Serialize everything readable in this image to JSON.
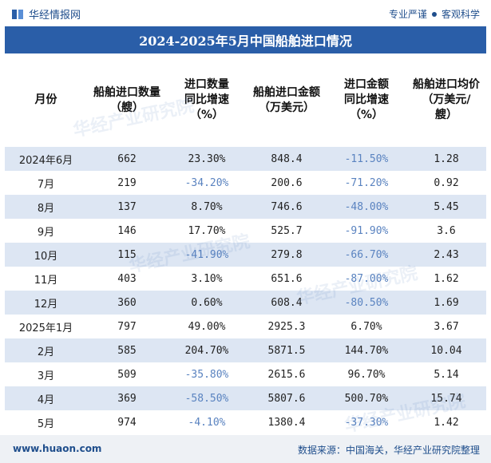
{
  "brand": {
    "name": "华经情报网"
  },
  "tagline": {
    "left": "专业严谨",
    "right": "客观科学"
  },
  "title": "2024-2025年5月中国船舶进口情况",
  "columns": [
    {
      "label": "月份"
    },
    {
      "label": "船舶进口数量\n（艘）"
    },
    {
      "label": "进口数量\n同比增速\n（%）"
    },
    {
      "label": "船舶进口金额\n（万美元）"
    },
    {
      "label": "进口金额\n同比增速\n（%）"
    },
    {
      "label": "船舶进口均价\n（万美元/\n艘）"
    }
  ],
  "rows": [
    [
      "2024年6月",
      "662",
      "23.30%",
      "848.4",
      "-11.50%",
      "1.28"
    ],
    [
      "7月",
      "219",
      "-34.20%",
      "200.6",
      "-71.20%",
      "0.92"
    ],
    [
      "8月",
      "137",
      "8.70%",
      "746.6",
      "-48.00%",
      "5.45"
    ],
    [
      "9月",
      "146",
      "17.70%",
      "525.7",
      "-91.90%",
      "3.6"
    ],
    [
      "10月",
      "115",
      "-41.90%",
      "279.8",
      "-66.70%",
      "2.43"
    ],
    [
      "11月",
      "403",
      "3.10%",
      "651.6",
      "-87.00%",
      "1.62"
    ],
    [
      "12月",
      "360",
      "0.60%",
      "608.4",
      "-80.50%",
      "1.69"
    ],
    [
      "2025年1月",
      "797",
      "49.00%",
      "2925.3",
      "6.70%",
      "3.67"
    ],
    [
      "2月",
      "585",
      "204.70%",
      "5871.5",
      "144.70%",
      "10.04"
    ],
    [
      "3月",
      "509",
      "-35.80%",
      "2615.6",
      "96.70%",
      "5.14"
    ],
    [
      "4月",
      "369",
      "-58.50%",
      "5807.6",
      "500.70%",
      "15.74"
    ],
    [
      "5月",
      "974",
      "-4.10%",
      "1380.4",
      "-37.30%",
      "1.42"
    ]
  ],
  "watermark": "华经产业研究院",
  "footer": {
    "site": "www.huaon.com",
    "source": "数据来源：中国海关，华经产业研究院整理"
  },
  "colors": {
    "title_bg": "#2a5ea8",
    "alt_row": "#dde6f3",
    "negative_text": "#5a83c0",
    "brand": "#1f4e8c"
  }
}
